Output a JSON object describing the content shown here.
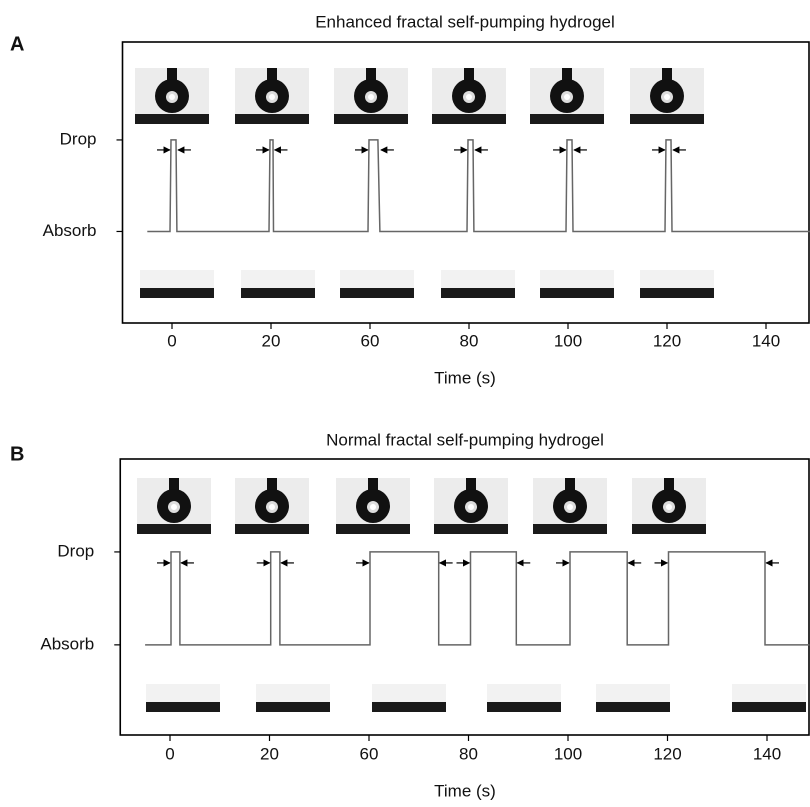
{
  "chart_data": [
    {
      "type": "line",
      "panel": "A",
      "title": "Enhanced fractal self-pumping hydrogel",
      "xlabel": "Time (s)",
      "xlim": [
        -10,
        149
      ],
      "xticks": [
        0,
        20,
        60,
        80,
        100,
        120,
        140
      ],
      "ylim": [
        -1,
        2.07
      ],
      "yticks": [
        {
          "value": 0,
          "label": "Absorb"
        },
        {
          "value": 1,
          "label": "Drop"
        }
      ],
      "series": [
        {
          "color": "#666666",
          "x": [
            -5,
            -0.4,
            -0.2,
            0.8,
            1,
            19.6,
            19.8,
            20.8,
            21,
            59.2,
            59.6,
            61.6,
            62,
            79.6,
            79.8,
            80.8,
            81,
            99.6,
            99.8,
            100.8,
            101,
            119.6,
            119.8,
            120.8,
            121,
            149
          ],
          "values": [
            0,
            0,
            1,
            1,
            0,
            0,
            1,
            1,
            0,
            0,
            1,
            1,
            0,
            0,
            1,
            1,
            0,
            0,
            1,
            1,
            0,
            0,
            1,
            1,
            0,
            0
          ]
        }
      ]
    },
    {
      "type": "line",
      "panel": "B",
      "title": "Normal fractal self-pumping hydrogel",
      "xlabel": "Time (s)",
      "xlim": [
        -10,
        148.5
      ],
      "xticks": [
        0,
        20,
        60,
        80,
        100,
        120,
        140
      ],
      "ylim": [
        -0.97,
        2.0
      ],
      "yticks": [
        {
          "value": 0,
          "label": "Absorb"
        },
        {
          "value": 1,
          "label": "Drop"
        }
      ],
      "series": [
        {
          "color": "#666666",
          "x": [
            -5,
            0.2,
            0.2,
            2,
            2,
            20.5,
            20.5,
            24.2,
            24.2,
            60.2,
            60.2,
            74,
            74,
            80.4,
            80.4,
            89.6,
            89.6,
            100.4,
            100.4,
            111.9,
            111.9,
            120.2,
            120.2,
            139.6,
            139.6,
            148.5
          ],
          "values": [
            0,
            0,
            1,
            1,
            0,
            0,
            1,
            1,
            0,
            0,
            1,
            1,
            0,
            0,
            1,
            1,
            0,
            0,
            1,
            1,
            0,
            0,
            1,
            1,
            0,
            0
          ]
        }
      ]
    }
  ]
}
